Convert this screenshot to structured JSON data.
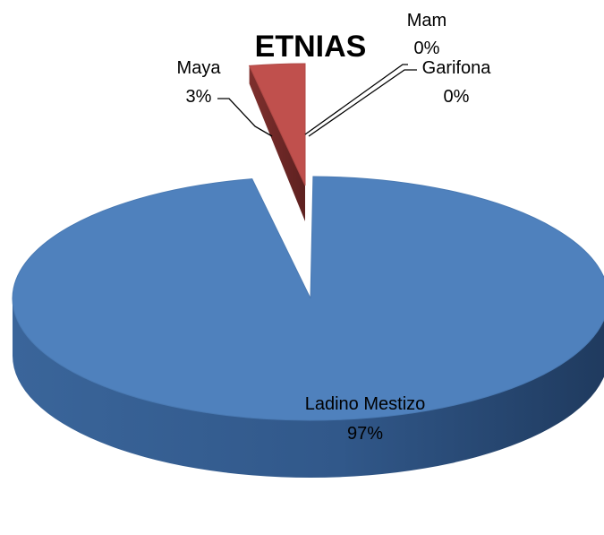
{
  "chart_data": {
    "type": "pie",
    "title": "ETNIAS",
    "style": "3d-exploded",
    "slices": [
      {
        "name": "Ladino Mestizo",
        "value": 97,
        "label": "97%",
        "color": "#4F81BD"
      },
      {
        "name": "Maya",
        "value": 3,
        "label": "3%",
        "color": "#C0504D"
      },
      {
        "name": "Mam",
        "value": 0,
        "label": "0%",
        "color": "#9BBB59"
      },
      {
        "name": "Garifona",
        "value": 0,
        "label": "0%",
        "color": "#8064A2"
      }
    ]
  }
}
